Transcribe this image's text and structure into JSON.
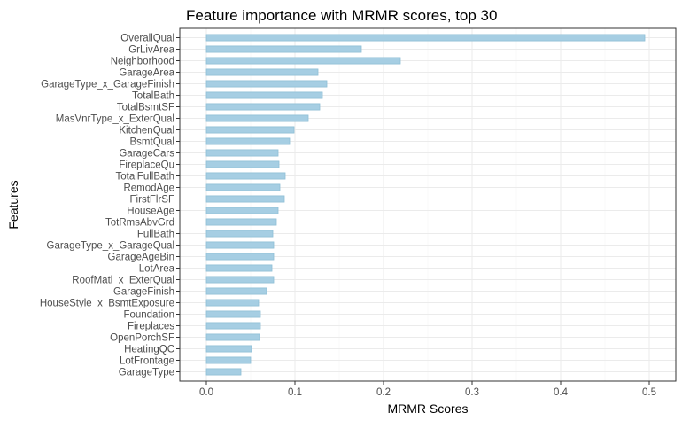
{
  "chart_data": {
    "type": "bar",
    "orientation": "horizontal",
    "title": "Feature importance with MRMR scores, top 30",
    "xlabel": "MRMR Scores",
    "ylabel": "Features",
    "xlim": [
      -0.03,
      0.53
    ],
    "xticks": [
      0.0,
      0.1,
      0.2,
      0.3,
      0.4,
      0.5
    ],
    "xtick_labels": [
      "0.0",
      "0.1",
      "0.2",
      "0.3",
      "0.4",
      "0.5"
    ],
    "grid": true,
    "bar_color": "#a6cee3",
    "bar_edge_color": "#8fbfd6",
    "categories": [
      "OverallQual",
      "GrLivArea",
      "Neighborhood",
      "GarageArea",
      "GarageType_x_GarageFinish",
      "TotalBath",
      "TotalBsmtSF",
      "MasVnrType_x_ExterQual",
      "KitchenQual",
      "BsmtQual",
      "GarageCars",
      "FireplaceQu",
      "TotalFullBath",
      "RemodAge",
      "FirstFlrSF",
      "HouseAge",
      "TotRmsAbvGrd",
      "FullBath",
      "GarageType_x_GarageQual",
      "GarageAgeBin",
      "LotArea",
      "RoofMatl_x_ExterQual",
      "GarageFinish",
      "HouseStyle_x_BsmtExposure",
      "Foundation",
      "Fireplaces",
      "OpenPorchSF",
      "HeatingQC",
      "LotFrontage",
      "GarageType"
    ],
    "values": [
      0.495,
      0.175,
      0.219,
      0.126,
      0.136,
      0.131,
      0.128,
      0.115,
      0.099,
      0.094,
      0.081,
      0.082,
      0.089,
      0.083,
      0.088,
      0.081,
      0.079,
      0.075,
      0.076,
      0.076,
      0.074,
      0.076,
      0.068,
      0.059,
      0.061,
      0.061,
      0.06,
      0.051,
      0.05,
      0.039
    ]
  }
}
